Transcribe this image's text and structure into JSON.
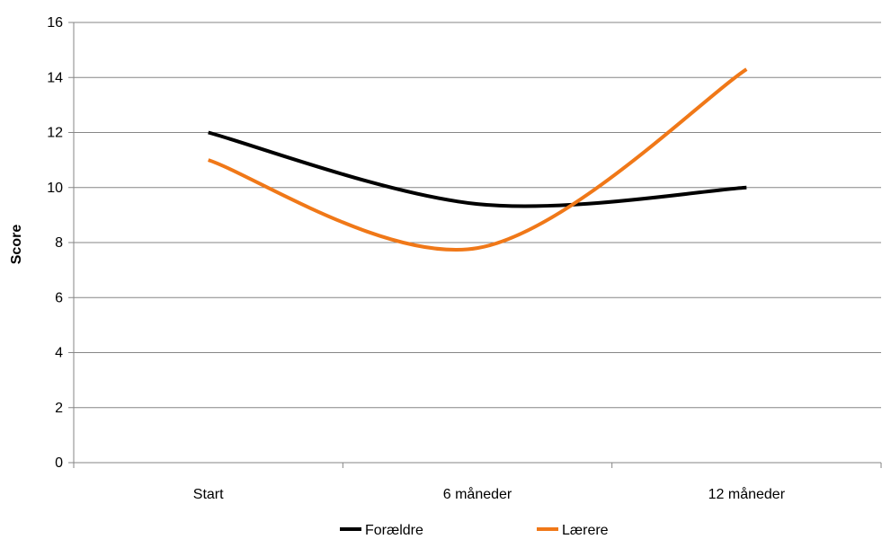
{
  "chart_data": {
    "type": "line",
    "title": "",
    "xlabel": "",
    "ylabel": "Score",
    "categories": [
      "Start",
      "6 måneder",
      "12 måneder"
    ],
    "ylim": [
      0,
      16
    ],
    "yticks": [
      0,
      2,
      4,
      6,
      8,
      10,
      12,
      14,
      16
    ],
    "smooth": true,
    "grid": "horizontal",
    "legend_position": "bottom",
    "series": [
      {
        "name": "Forældre",
        "color": "#000000",
        "values": [
          12,
          9.4,
          10
        ]
      },
      {
        "name": "Lærere",
        "color": "#F07818",
        "values": [
          11,
          7.8,
          14.3
        ]
      }
    ]
  }
}
